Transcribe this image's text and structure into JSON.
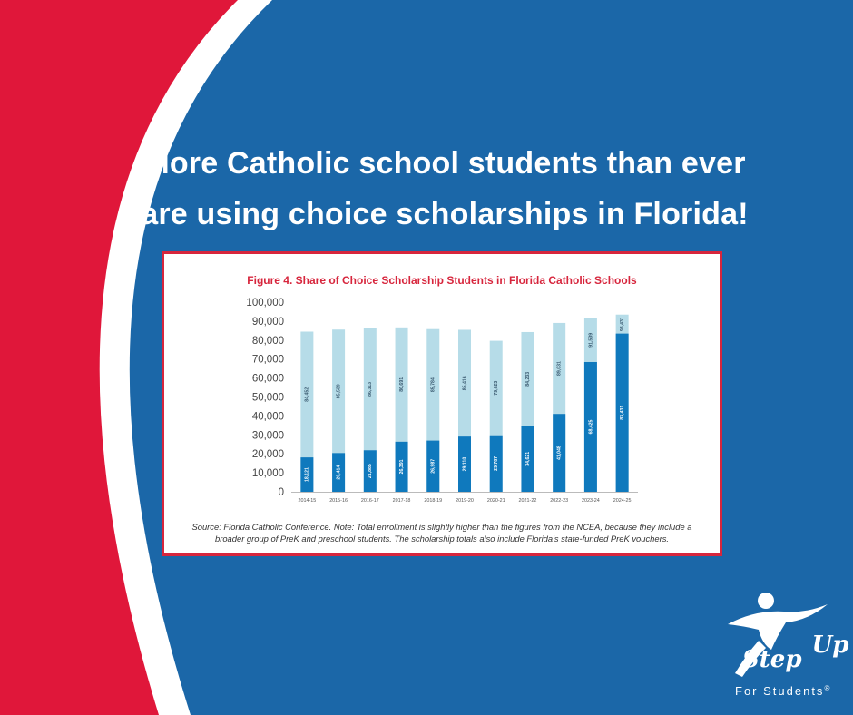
{
  "headline": {
    "line1": "More Catholic school students than ever",
    "line2": "are using choice scholarships in Florida!"
  },
  "colors": {
    "red": "#e0173a",
    "blue": "#1b67a8",
    "white": "#ffffff",
    "title_red": "#d7263d",
    "bar_light": "#b6dce8",
    "bar_dark": "#0f79bd"
  },
  "chart_data": {
    "type": "bar",
    "title": "Figure 4. Share of Choice Scholarship Students in Florida Catholic Schools",
    "categories": [
      "2014-15",
      "2015-16",
      "2016-17",
      "2017-18",
      "2018-19",
      "2019-20",
      "2020-21",
      "2021-22",
      "2022-23",
      "2023-24",
      "2024-25"
    ],
    "series": [
      {
        "values": [
          84452,
          85539,
          86313,
          86691,
          85784,
          85416,
          79623,
          84233,
          89031,
          91539,
          93431
        ]
      },
      {
        "values": [
          18121,
          20414,
          21885,
          26391,
          26987,
          29110,
          29787,
          34621,
          41048,
          68425,
          83431
        ]
      }
    ],
    "value_labels_total": [
      "84,452",
      "85,539",
      "86,313",
      "86,691",
      "85,784",
      "85,416",
      "79,623",
      "84,233",
      "89,031",
      "91,539",
      "93,431"
    ],
    "value_labels_scholarship": [
      "18,121",
      "20,414",
      "21,885",
      "26,391",
      "26,987",
      "29,110",
      "29,787",
      "34,621",
      "41,048",
      "68,425",
      "83,431"
    ],
    "yticks": [
      "0",
      "10,000",
      "20,000",
      "30,000",
      "40,000",
      "50,000",
      "60,000",
      "70,000",
      "80,000",
      "90,000",
      "100,000"
    ],
    "ylim": [
      0,
      100000
    ],
    "grid": false,
    "legend": "none"
  },
  "source_note": {
    "line1": "Source: Florida Catholic Conference. Note: Total enrollment is slightly higher than the figures from the NCEA, because they include a",
    "line2": "broader group of PreK and preschool students. The scholarship totals also include Florida's state-funded PreK vouchers."
  },
  "logo": {
    "icon": "runner-figure-icon",
    "step": "Step",
    "up": "Up",
    "for_students": "For Students",
    "mark": "®"
  }
}
